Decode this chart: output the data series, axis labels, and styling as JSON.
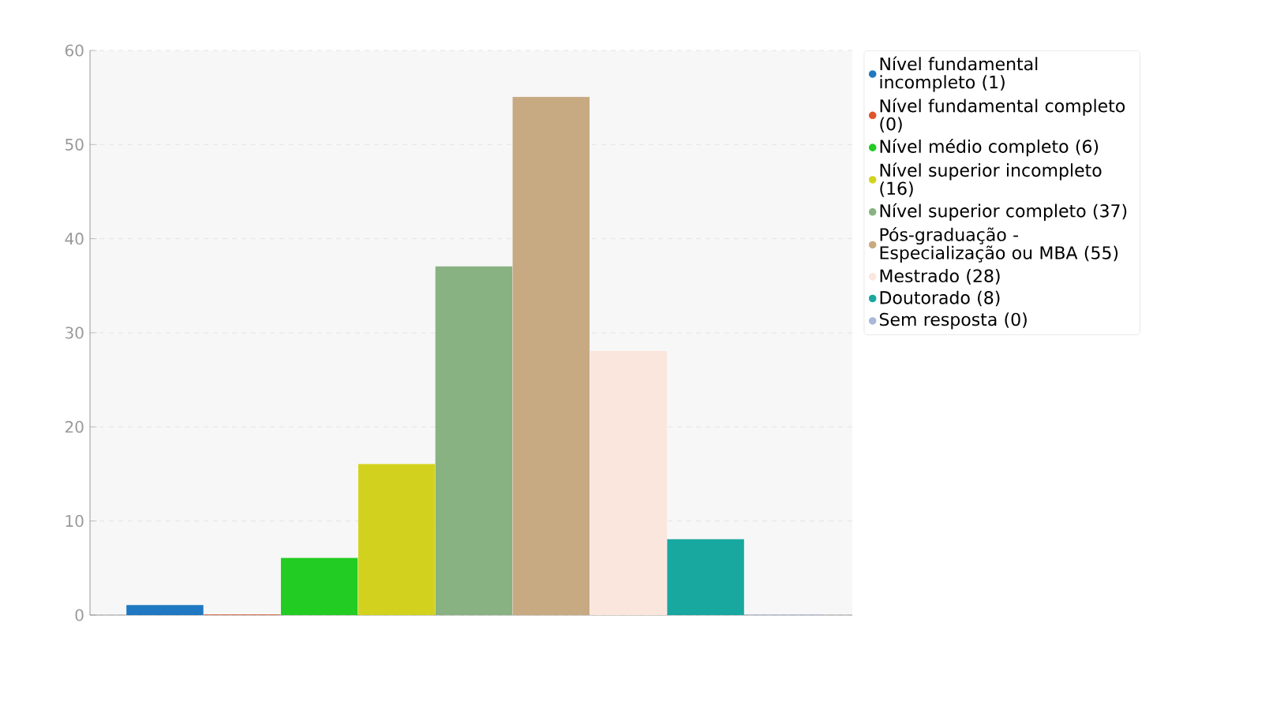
{
  "chart_data": {
    "type": "bar",
    "categories": [
      null,
      null,
      null,
      null,
      null,
      null,
      null,
      null,
      null
    ],
    "series": [
      {
        "name": "Nível fundamental incompleto (1)",
        "color": "#1f78c1",
        "values": [
          1,
          null,
          null,
          null,
          null,
          null,
          null,
          null,
          null
        ]
      },
      {
        "name": "Nível fundamental completo (0)",
        "color": "#e0542a",
        "values": [
          null,
          0,
          null,
          null,
          null,
          null,
          null,
          null,
          null
        ]
      },
      {
        "name": "Nível médio completo (6)",
        "color": "#22cc22",
        "values": [
          null,
          null,
          6,
          null,
          null,
          null,
          null,
          null,
          null
        ]
      },
      {
        "name": "Nível superior incompleto (16)",
        "color": "#d2d21e",
        "values": [
          null,
          null,
          null,
          16,
          null,
          null,
          null,
          null,
          null
        ]
      },
      {
        "name": "Nível superior completo (37)",
        "color": "#88b282",
        "values": [
          null,
          null,
          null,
          null,
          37,
          null,
          null,
          null,
          null
        ]
      },
      {
        "name": "Pós-graduação - Especialização ou MBA (55)",
        "color": "#c8aa82",
        "values": [
          null,
          null,
          null,
          null,
          null,
          55,
          null,
          null,
          null
        ]
      },
      {
        "name": "Mestrado (28)",
        "color": "#fbe6de",
        "values": [
          null,
          null,
          null,
          null,
          null,
          null,
          28,
          null,
          null
        ]
      },
      {
        "name": "Doutorado (8)",
        "color": "#18a8a0",
        "values": [
          null,
          null,
          null,
          null,
          null,
          null,
          null,
          8,
          null
        ]
      },
      {
        "name": "Sem resposta (0)",
        "color": "#a8b8d8",
        "values": [
          null,
          null,
          null,
          null,
          null,
          null,
          null,
          null,
          0
        ]
      }
    ],
    "ylim": [
      0,
      60
    ],
    "yticks": [
      0,
      10,
      20,
      30,
      40,
      50,
      60
    ],
    "grid": "y",
    "legend": "top right",
    "tick_labels": "y"
  }
}
